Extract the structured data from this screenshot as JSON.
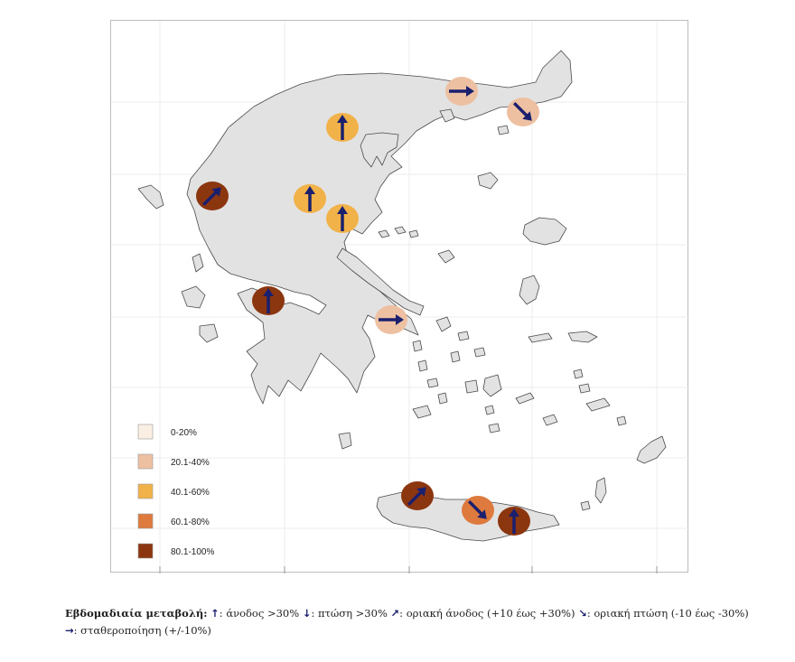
{
  "colors": {
    "land": "#e2e2e2",
    "coast": "#4a4a4a",
    "arrow": "#1a1f6e",
    "grid": "#ececec"
  },
  "legend": [
    {
      "label": "0-20%",
      "color": "#fbeee2"
    },
    {
      "label": "20.1-40%",
      "color": "#eec0a2"
    },
    {
      "label": "40.1-60%",
      "color": "#f2b24a"
    },
    {
      "label": "60.1-80%",
      "color": "#de7a3e"
    },
    {
      "label": "80.1-100%",
      "color": "#8c3610"
    }
  ],
  "markers": [
    {
      "name": "thrace-west",
      "category": "20.1-40%",
      "trend": "stabilization"
    },
    {
      "name": "evros",
      "category": "20.1-40%",
      "trend": "marginal-decrease"
    },
    {
      "name": "thessaloniki",
      "category": "40.1-60%",
      "trend": "increase"
    },
    {
      "name": "epirus",
      "category": "80.1-100%",
      "trend": "marginal-increase"
    },
    {
      "name": "thessaly-west",
      "category": "40.1-60%",
      "trend": "increase"
    },
    {
      "name": "volos",
      "category": "40.1-60%",
      "trend": "increase"
    },
    {
      "name": "patras",
      "category": "80.1-100%",
      "trend": "increase"
    },
    {
      "name": "athens",
      "category": "20.1-40%",
      "trend": "stabilization"
    },
    {
      "name": "chania",
      "category": "80.1-100%",
      "trend": "marginal-increase"
    },
    {
      "name": "rethymno",
      "category": "60.1-80%",
      "trend": "marginal-decrease"
    },
    {
      "name": "heraklion",
      "category": "80.1-100%",
      "trend": "increase"
    }
  ],
  "caption": {
    "title": "Εβδομαδιαία μεταβολή:",
    "up_icon": "↑",
    "up_text": ": άνοδος >30%",
    "down_icon": "↓",
    "down_text": ": πτώση >30%",
    "mup_icon": "↗",
    "mup_text": ": οριακή άνοδος (+10 έως +30%)",
    "mdown_icon": "↘",
    "mdown_text": ": οριακή πτώση  (-10 έως -30%)",
    "stab_icon": "→",
    "stab_text": ":  σταθεροποίηση (+/-10%)"
  }
}
